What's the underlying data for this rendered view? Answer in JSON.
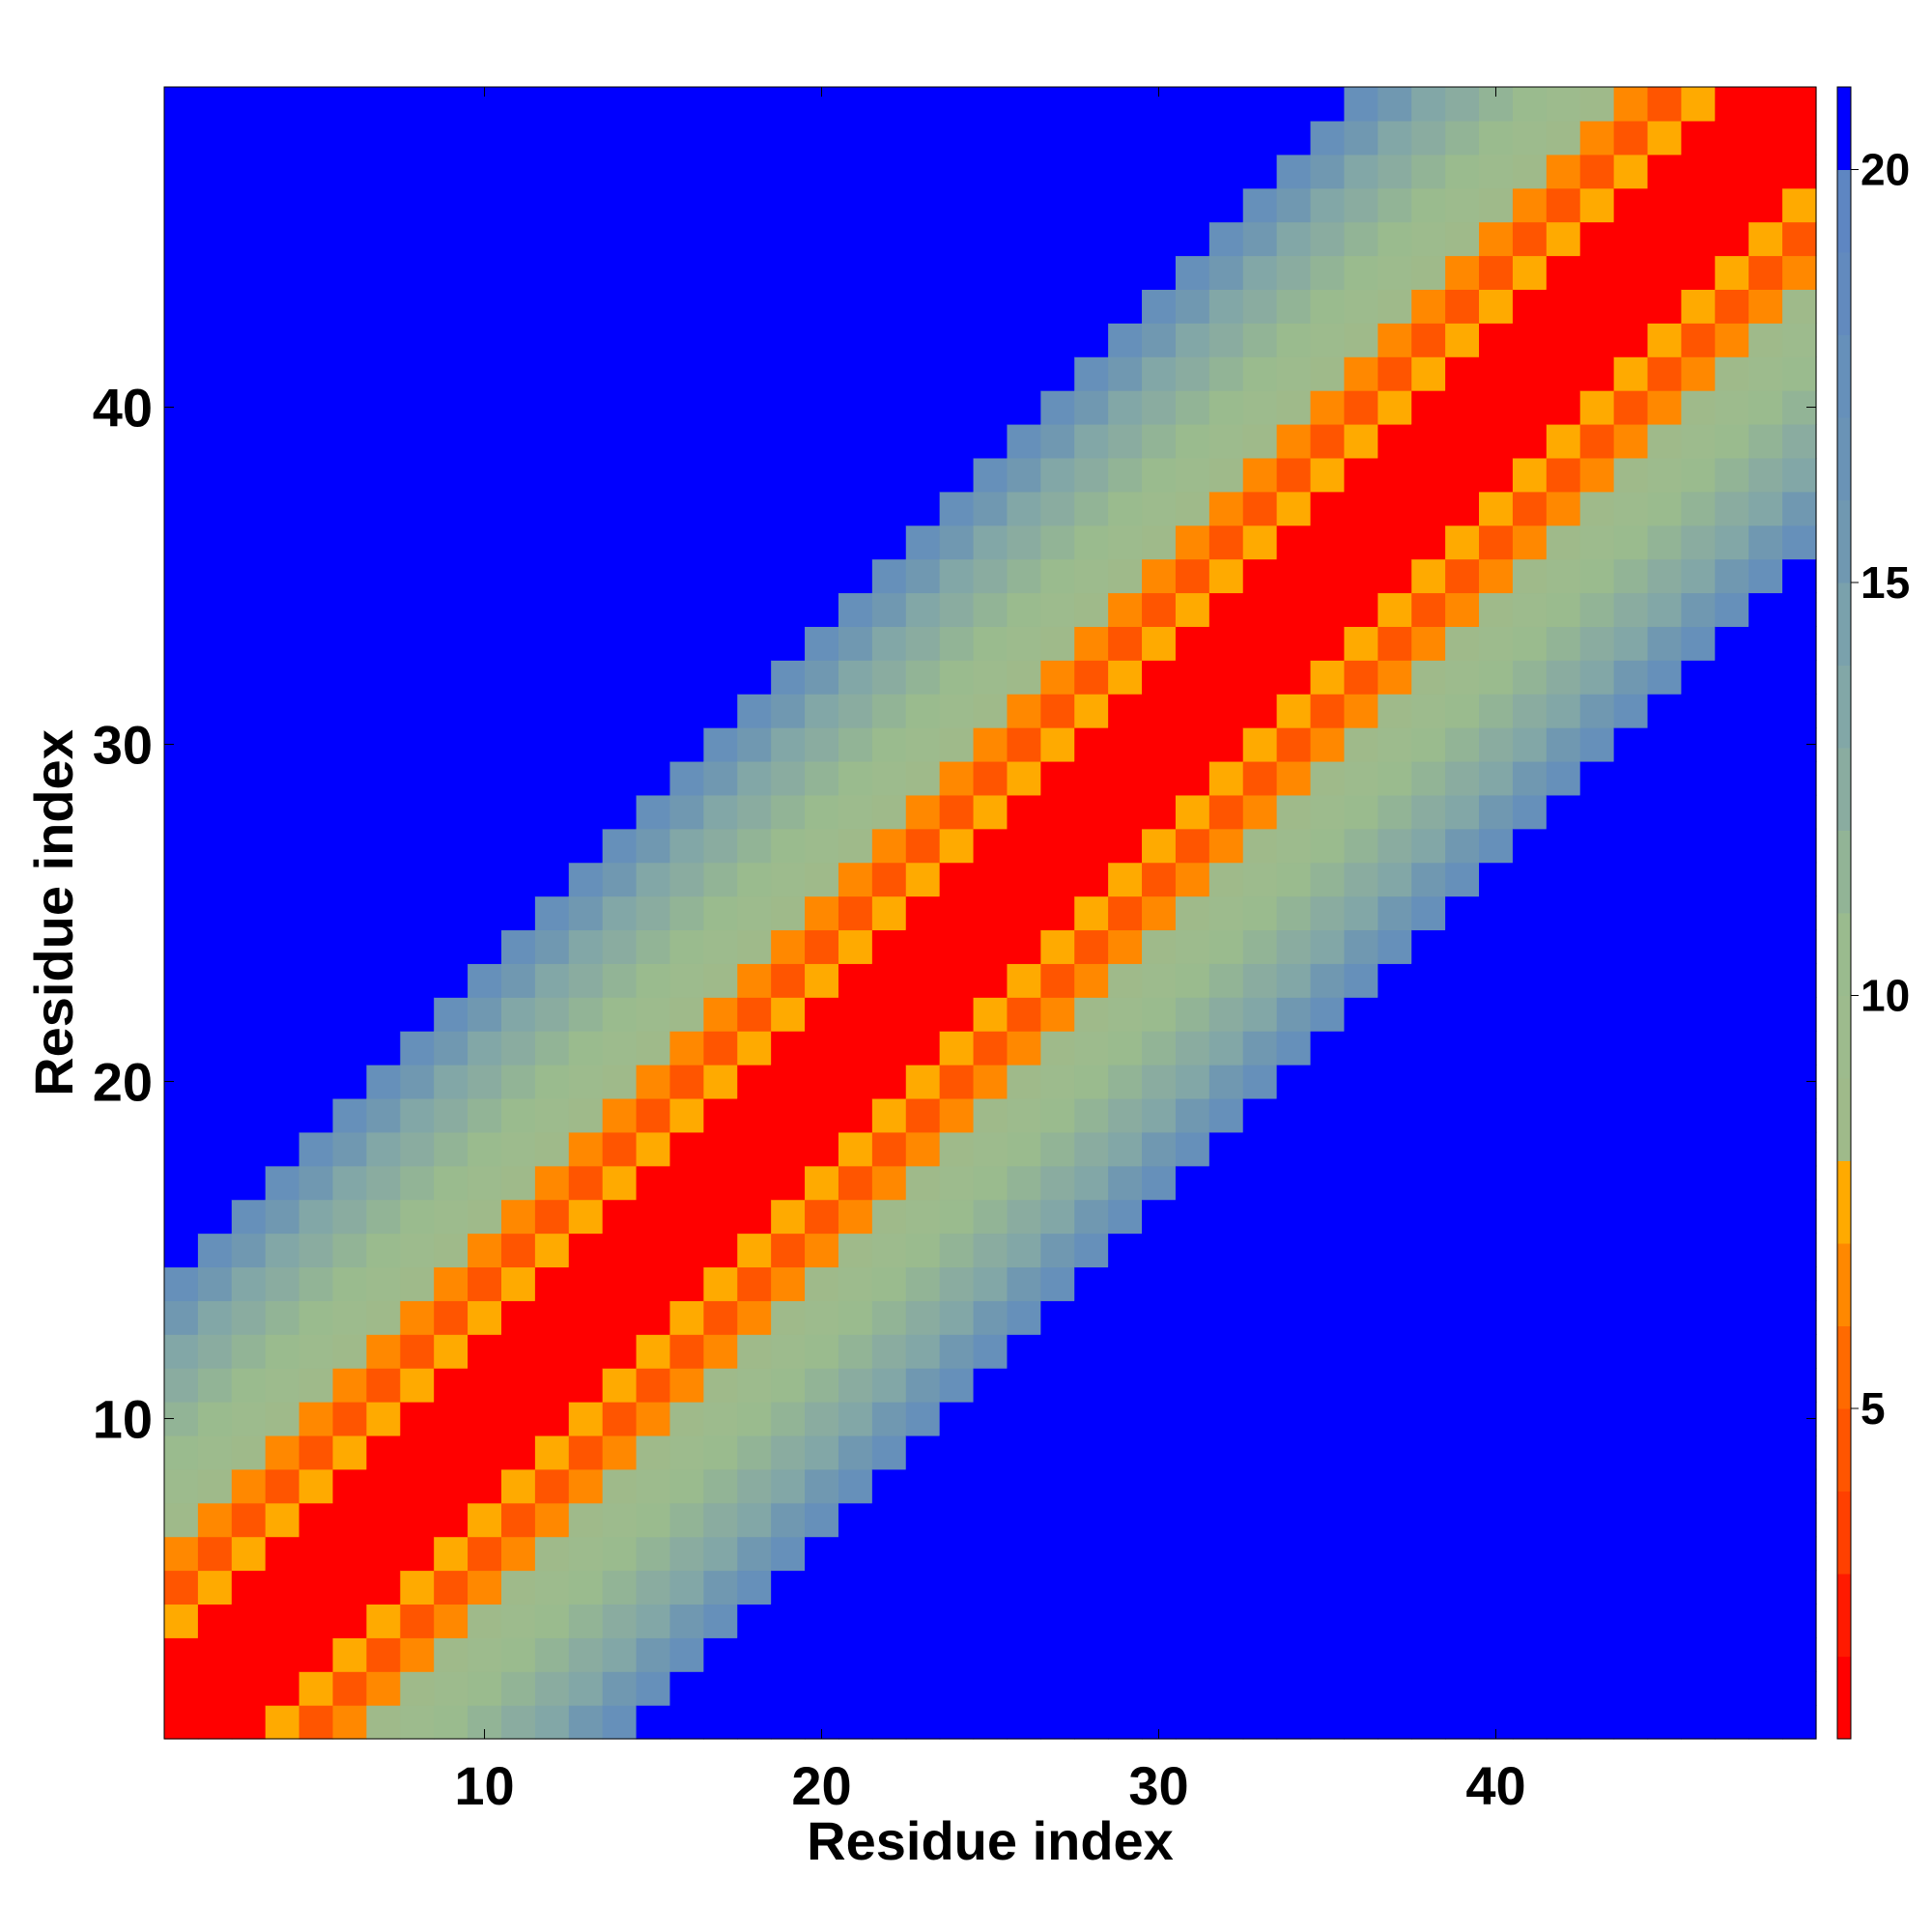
{
  "chart_data": {
    "type": "heatmap",
    "title": "",
    "xlabel": "Residue index",
    "ylabel": "Residue index",
    "x_range": [
      1,
      49
    ],
    "y_range": [
      1,
      49
    ],
    "n_residues": 49,
    "xticks": [
      10,
      20,
      30,
      40
    ],
    "yticks": [
      10,
      20,
      30,
      40
    ],
    "colorbar": {
      "ticks": [
        5,
        10,
        15,
        20
      ],
      "range": [
        1,
        21
      ],
      "levels": [
        {
          "max": 2,
          "color": "#ff0000"
        },
        {
          "max": 3,
          "color": "#ff1a00"
        },
        {
          "max": 4,
          "color": "#ff4000"
        },
        {
          "max": 5,
          "color": "#ff5500"
        },
        {
          "max": 6,
          "color": "#ff6a00"
        },
        {
          "max": 7,
          "color": "#ff8800"
        },
        {
          "max": 8,
          "color": "#ffaa00"
        },
        {
          "max": 9,
          "color": "#9fba8a"
        },
        {
          "max": 10,
          "color": "#9dbb8d"
        },
        {
          "max": 11,
          "color": "#9abb8e"
        },
        {
          "max": 12,
          "color": "#92b496"
        },
        {
          "max": 13,
          "color": "#8aaca0"
        },
        {
          "max": 14,
          "color": "#82a7a7"
        },
        {
          "max": 15,
          "color": "#7aa1ac"
        },
        {
          "max": 16,
          "color": "#7098b1"
        },
        {
          "max": 17,
          "color": "#6a93b6"
        },
        {
          "max": 18,
          "color": "#6690ba"
        },
        {
          "max": 19,
          "color": "#628abe"
        },
        {
          "max": 20,
          "color": "#5e86c2"
        },
        {
          "max": 21,
          "color": "#0000ff"
        }
      ]
    },
    "cell_colors_by_offset": {
      "0": "#ff0000",
      "1": "#ff0000",
      "2": "#ff0000",
      "3": "#ffaa00",
      "4": "#ff5500",
      "5": "#ff8800",
      "6": "#9fba8a",
      "7": "#9dbb8d",
      "8": "#9abb8e",
      "9": "#92b496",
      "10": "#8aaca0",
      "11": "#82a7a7",
      "12": "#7098b1",
      "13": "#6690ba",
      "far": "#0000ff"
    },
    "description_rule": "value grows with |i - j|; cells beyond offset 13 are saturated (blue)"
  }
}
